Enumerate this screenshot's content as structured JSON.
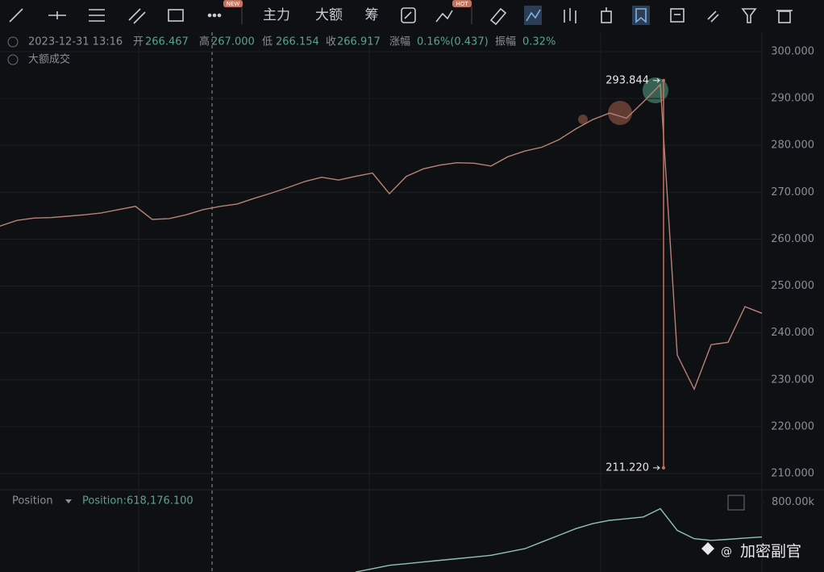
{
  "toolbar": {
    "buttons": [
      "主力",
      "大额",
      "筹"
    ],
    "badges": [
      "NEW",
      "HOT"
    ]
  },
  "ohlc_bar": {
    "time": "2023-12-31 13:16",
    "items": [
      {
        "label": "开",
        "value": "266.467"
      },
      {
        "label": "高",
        "value": "267.000"
      },
      {
        "label": "低",
        "value": "266.154"
      },
      {
        "label": "收",
        "value": "266.917"
      },
      {
        "label": "涨幅",
        "value": "0.16%(0.437)"
      },
      {
        "label": "振幅",
        "value": "0.32%"
      }
    ],
    "indicator": "大额成交"
  },
  "watermark": "加密副官",
  "chart_data": [
    {
      "type": "line",
      "ylim": [
        206.56,
        304.13
      ],
      "yticks": [
        {
          "value": 210,
          "label": "210.000"
        },
        {
          "value": 220,
          "label": "220.000"
        },
        {
          "value": 230,
          "label": "230.000"
        },
        {
          "value": 240,
          "label": "240.000"
        },
        {
          "value": 250,
          "label": "250.000"
        },
        {
          "value": 260,
          "label": "260.000"
        },
        {
          "value": 270,
          "label": "270.000"
        },
        {
          "value": 280,
          "label": "280.000"
        },
        {
          "value": 290,
          "label": "290.000"
        },
        {
          "value": 300,
          "label": "300.000"
        }
      ],
      "grid": true,
      "series": [
        {
          "color": "#b98276",
          "values": [
            262.8,
            264.0,
            264.5,
            264.6,
            264.9,
            265.2,
            265.6,
            266.3,
            267.0,
            264.2,
            264.4,
            265.2,
            266.3,
            267.0,
            267.5,
            268.7,
            269.8,
            271.0,
            272.3,
            273.2,
            272.6,
            273.4,
            274.1,
            269.7,
            273.4,
            275.0,
            275.8,
            276.3,
            276.2,
            275.6,
            277.6,
            278.8,
            279.6,
            281.2,
            283.5,
            285.5,
            286.9,
            285.8,
            289.3,
            293.0,
            235.3,
            228.0,
            237.5,
            238.0,
            245.6,
            244.2
          ]
        }
      ],
      "annotations": [
        {
          "value": 293.844,
          "label": "293.844"
        },
        {
          "value": 211.22,
          "label": "211.220"
        }
      ]
    },
    {
      "type": "line",
      "title": "Position",
      "legend_value": "Position:618,176.100",
      "ylim": [
        590000,
        820000
      ],
      "yticks": [
        {
          "value": 800000,
          "label": "800.00k"
        }
      ],
      "series": [
        {
          "color": "#8fc4ad",
          "values": [
            null,
            null,
            null,
            null,
            null,
            null,
            null,
            null,
            null,
            null,
            null,
            null,
            null,
            null,
            null,
            null,
            null,
            null,
            null,
            null,
            null,
            590000,
            600000,
            610000,
            615000,
            620000,
            625000,
            630000,
            635000,
            640000,
            650000,
            660000,
            680000,
            700000,
            720000,
            735000,
            745000,
            750000,
            755000,
            780000,
            715000,
            690000,
            685000,
            688000,
            692000,
            695000
          ]
        }
      ]
    }
  ]
}
